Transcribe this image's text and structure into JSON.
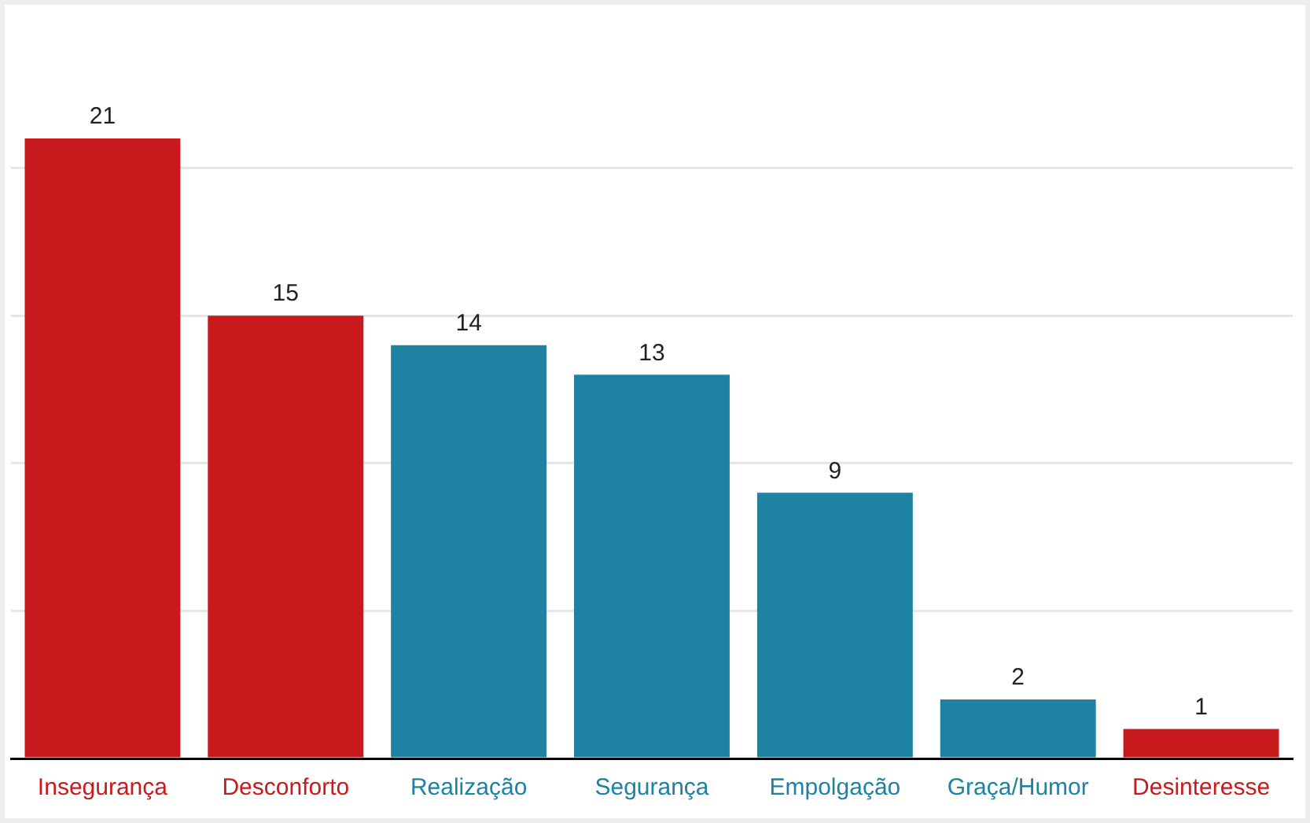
{
  "chart_data": {
    "type": "bar",
    "categories": [
      "Insegurança",
      "Desconforto",
      "Realização",
      "Segurança",
      "Empolgação",
      "Graça/Humor",
      "Desinteresse"
    ],
    "values": [
      21,
      15,
      14,
      13,
      9,
      2,
      1
    ],
    "colors": [
      "#c8191c",
      "#c8191c",
      "#1e82a3",
      "#1e82a3",
      "#1e82a3",
      "#1e82a3",
      "#c8191c"
    ],
    "yticks": [
      {
        "value": 0,
        "label": null
      },
      {
        "value": 5,
        "label": null
      },
      {
        "value": 10,
        "label": null
      },
      {
        "value": 15,
        "label": null
      },
      {
        "value": 20,
        "label": null
      }
    ],
    "tick_labels": "x",
    "grid": "y",
    "data_labels": true,
    "legend": false
  }
}
